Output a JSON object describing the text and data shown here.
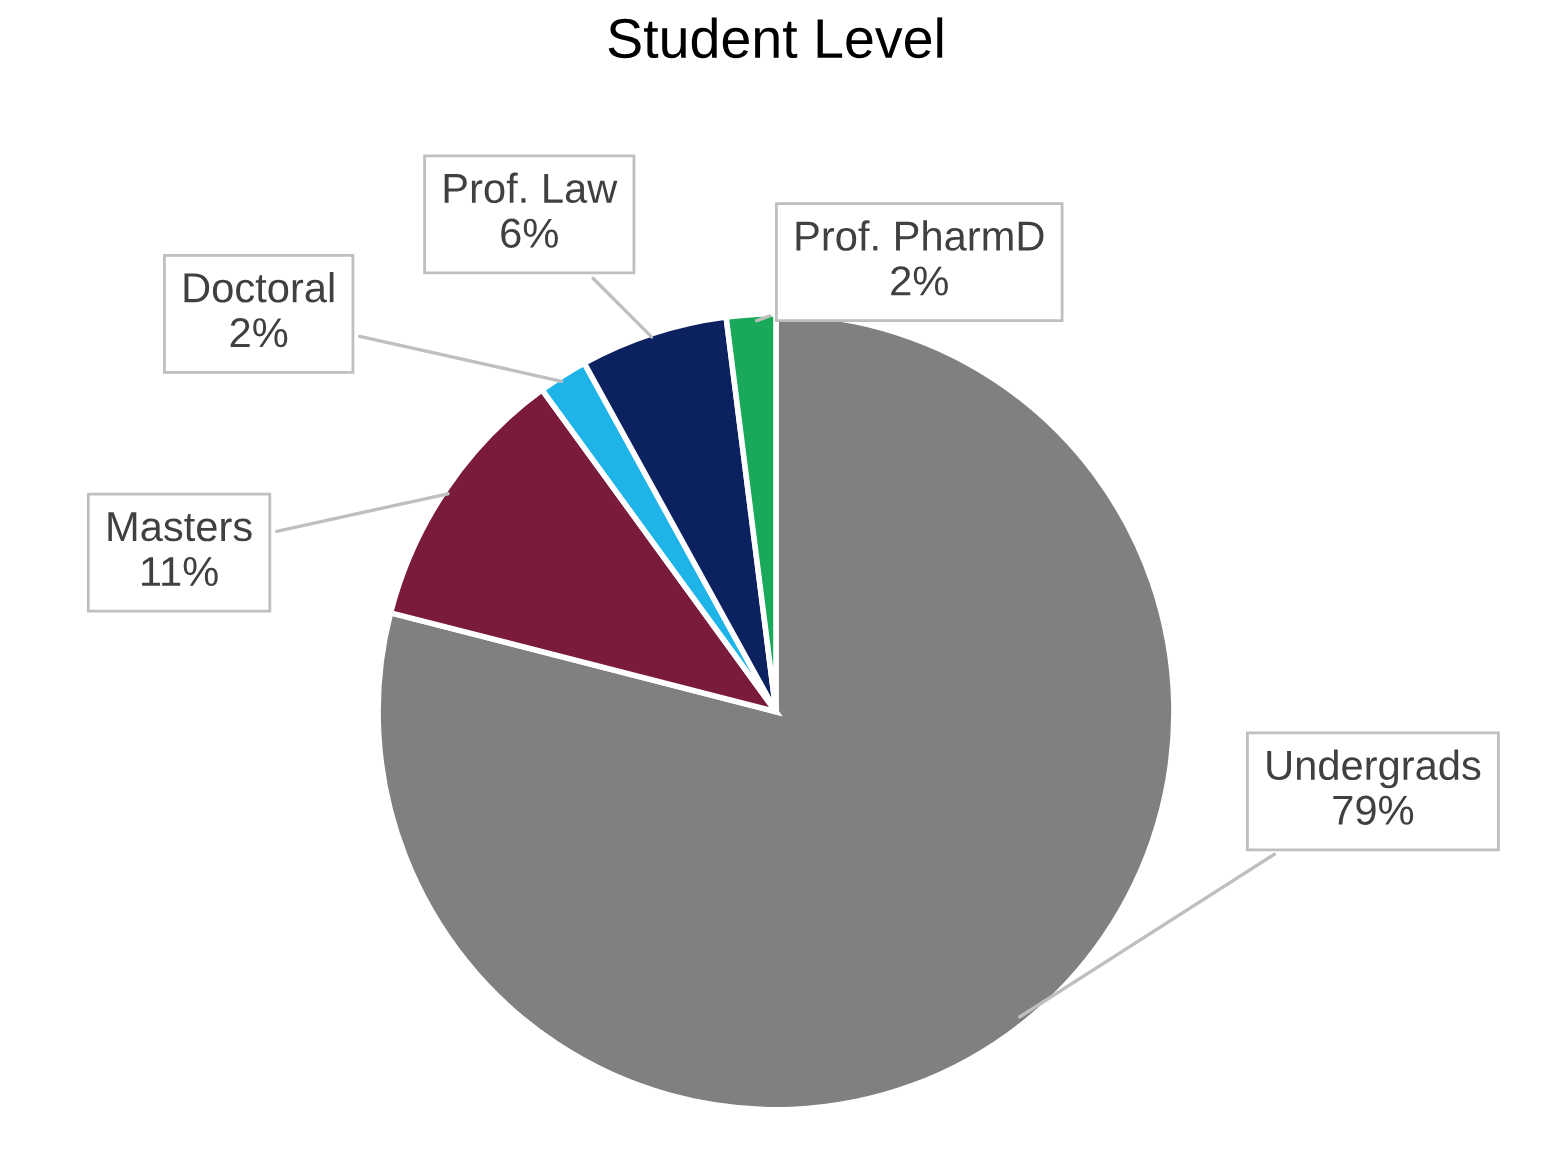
{
  "chart_data": {
    "type": "pie",
    "title": "Student Level",
    "categories": [
      "Undergrads",
      "Masters",
      "Doctoral",
      "Prof. Law",
      "Prof. PharmD"
    ],
    "values": [
      79,
      11,
      2,
      6,
      2
    ],
    "value_labels": [
      "79%",
      "11%",
      "2%",
      "6%",
      "2%"
    ],
    "colors": [
      "#808080",
      "#7a1a3d",
      "#1fb4e8",
      "#0c2160",
      "#1aa85a"
    ]
  }
}
